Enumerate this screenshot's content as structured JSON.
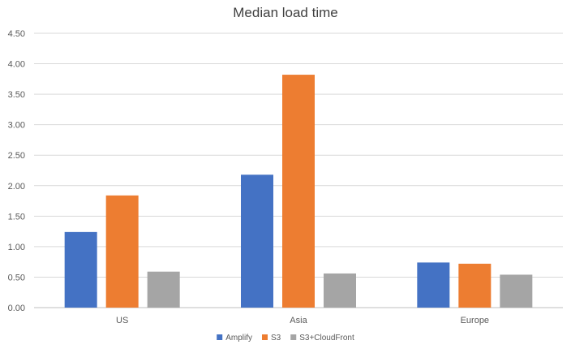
{
  "chart_data": {
    "type": "bar",
    "title": "Median load time",
    "xlabel": "",
    "ylabel": "",
    "categories": [
      "US",
      "Asia",
      "Europe"
    ],
    "series": [
      {
        "name": "Amplify",
        "color": "#4472c4",
        "values": [
          1.24,
          2.18,
          0.74
        ]
      },
      {
        "name": "S3",
        "color": "#ed7d31",
        "values": [
          1.84,
          3.82,
          0.72
        ]
      },
      {
        "name": "S3+CloudFront",
        "color": "#a5a5a5",
        "values": [
          0.59,
          0.56,
          0.54
        ]
      }
    ],
    "ylim": [
      0,
      4.5
    ],
    "yticks": [
      "0.00",
      "0.50",
      "1.00",
      "1.50",
      "2.00",
      "2.50",
      "3.00",
      "3.50",
      "4.00",
      "4.50"
    ],
    "grid": true,
    "legend_position": "bottom"
  }
}
